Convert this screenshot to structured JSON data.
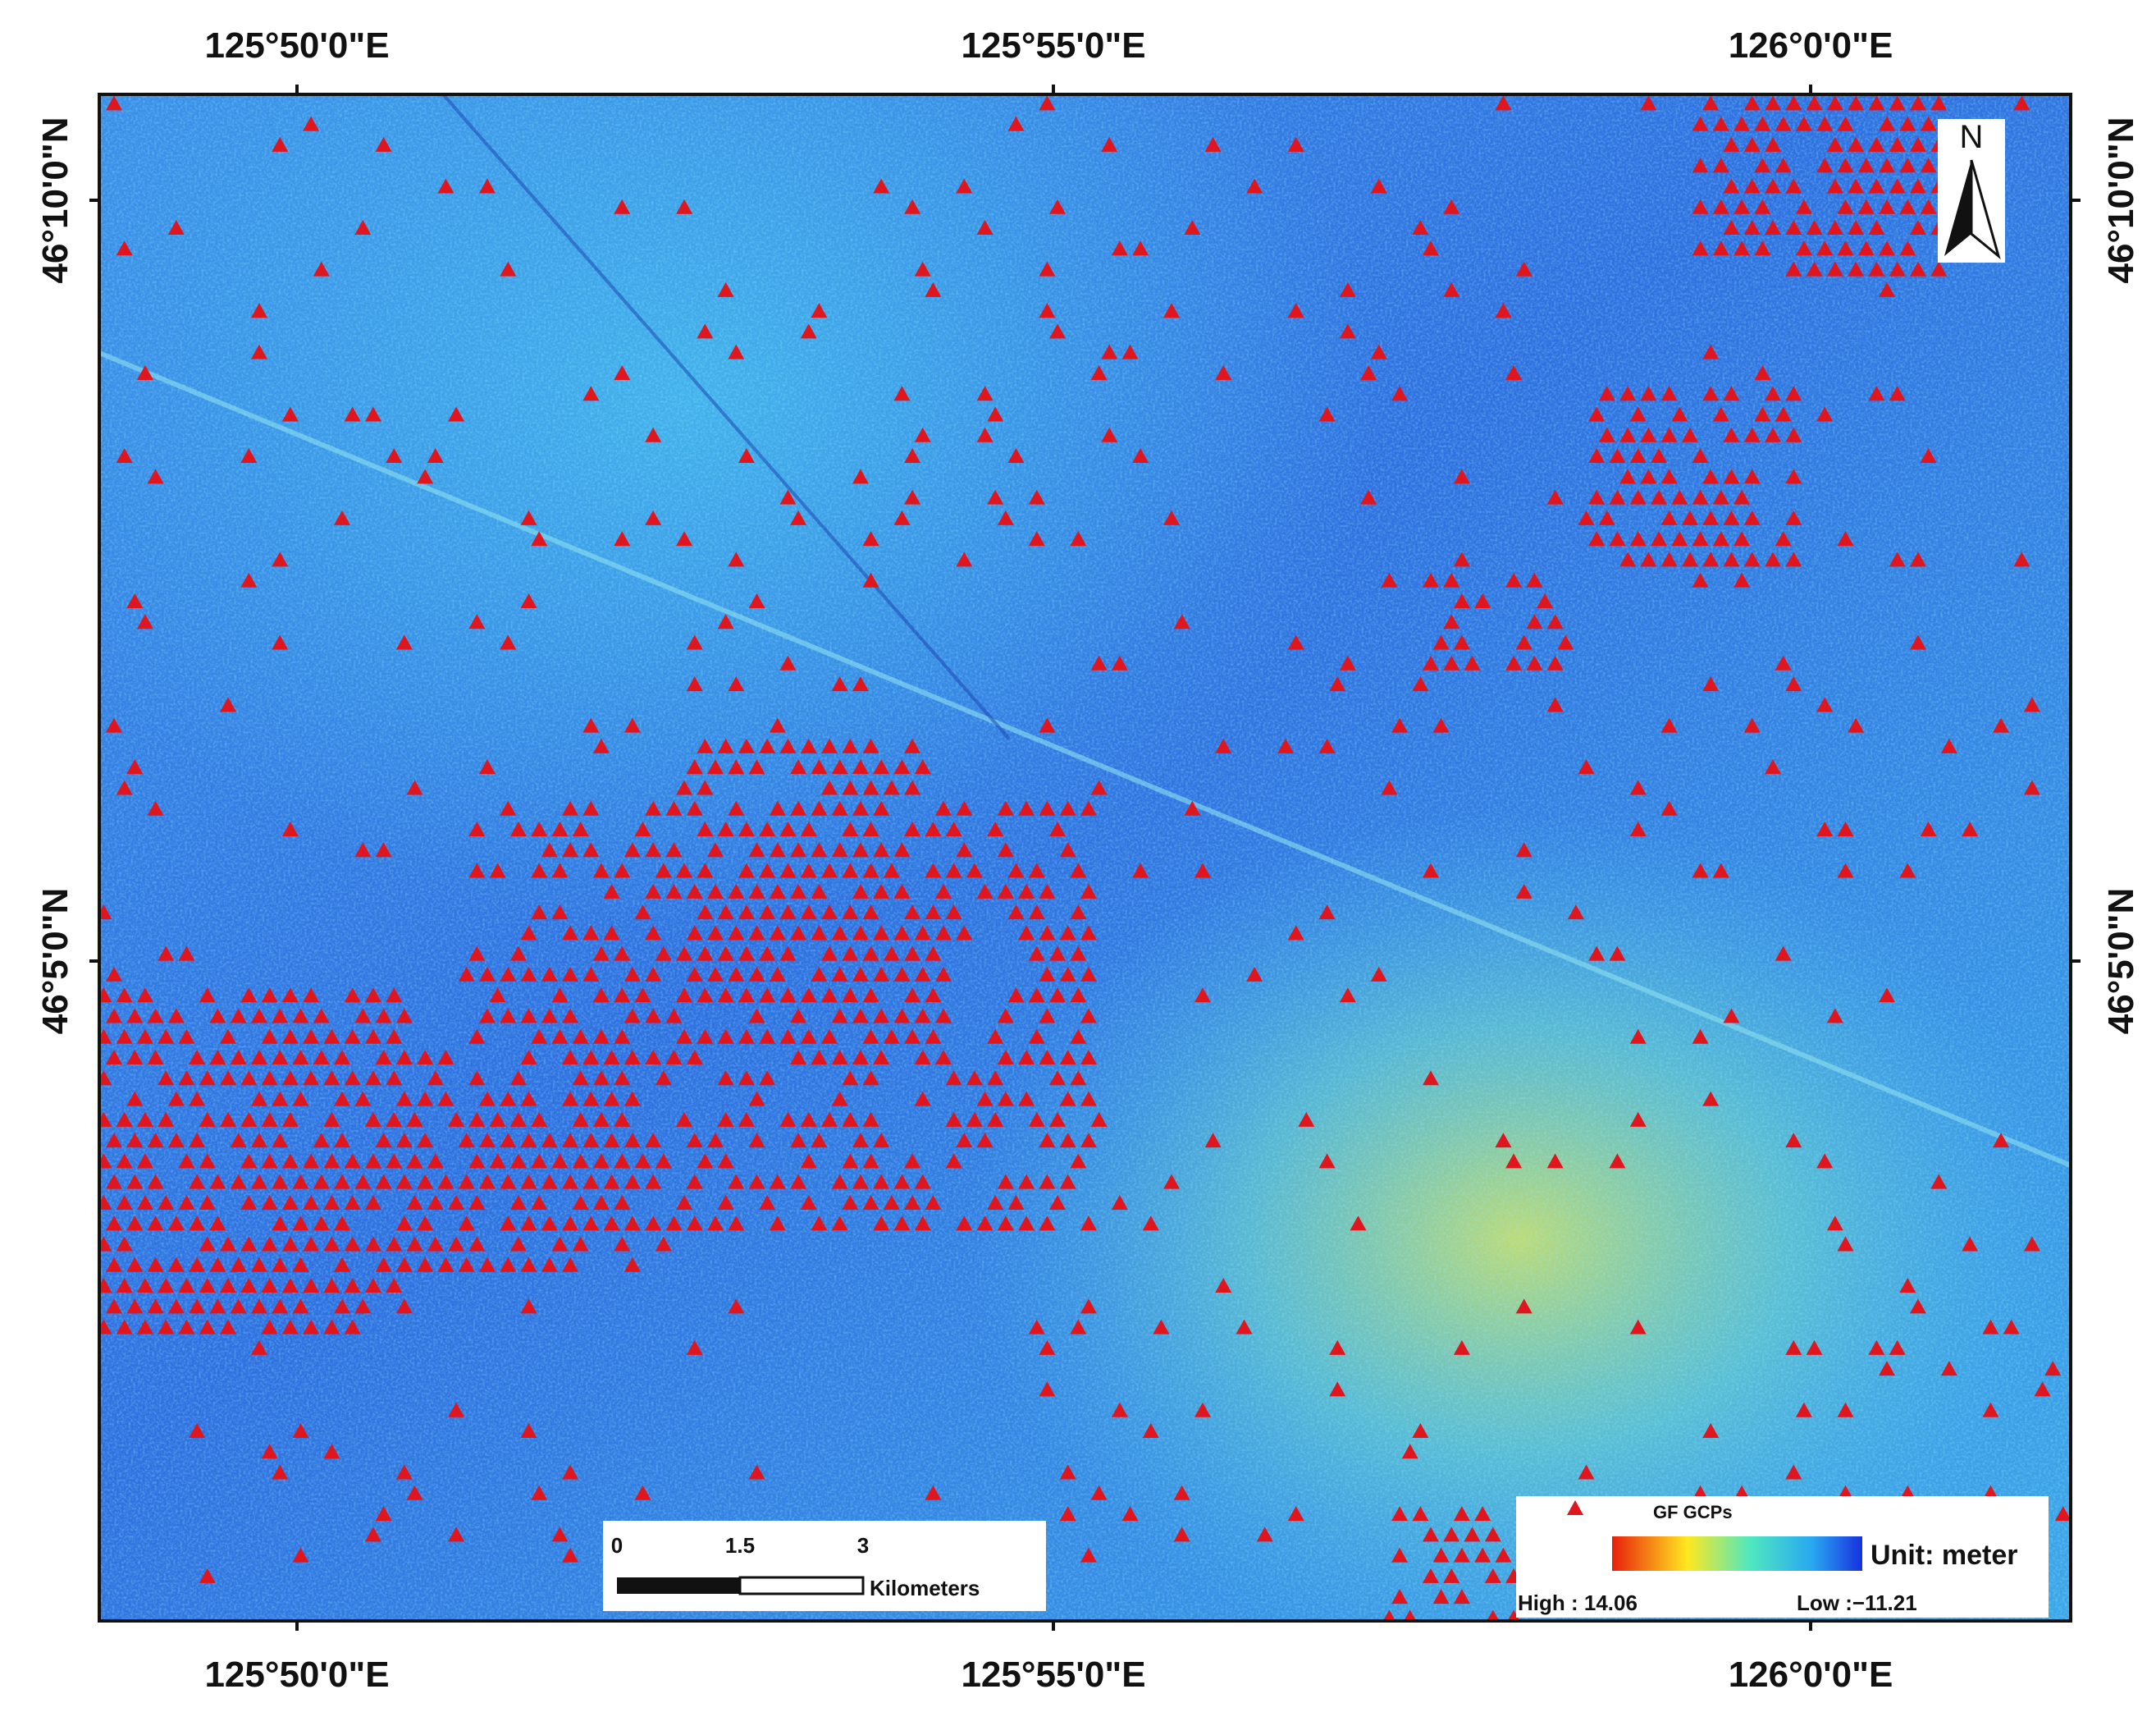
{
  "map": {
    "top_labels": [
      "125°50'0\"E",
      "125°55'0\"E",
      "126°0'0\"E"
    ],
    "bottom_labels": [
      "125°50'0\"E",
      "125°55'0\"E",
      "126°0'0\"E"
    ],
    "left_labels": [
      "46°10'0\"N",
      "46°5'0\"N"
    ],
    "right_labels": [
      "46°10'0\"N",
      "46°5'0\"N"
    ],
    "north": "N",
    "scale_bar": {
      "ticks": [
        "0",
        "1.5",
        "3"
      ],
      "unit": "Kilometers"
    },
    "legend": {
      "points": "GF GCPs",
      "unit": "Unit: meter",
      "high": "High : 14.06",
      "low": "Low :−11.21"
    }
  }
}
